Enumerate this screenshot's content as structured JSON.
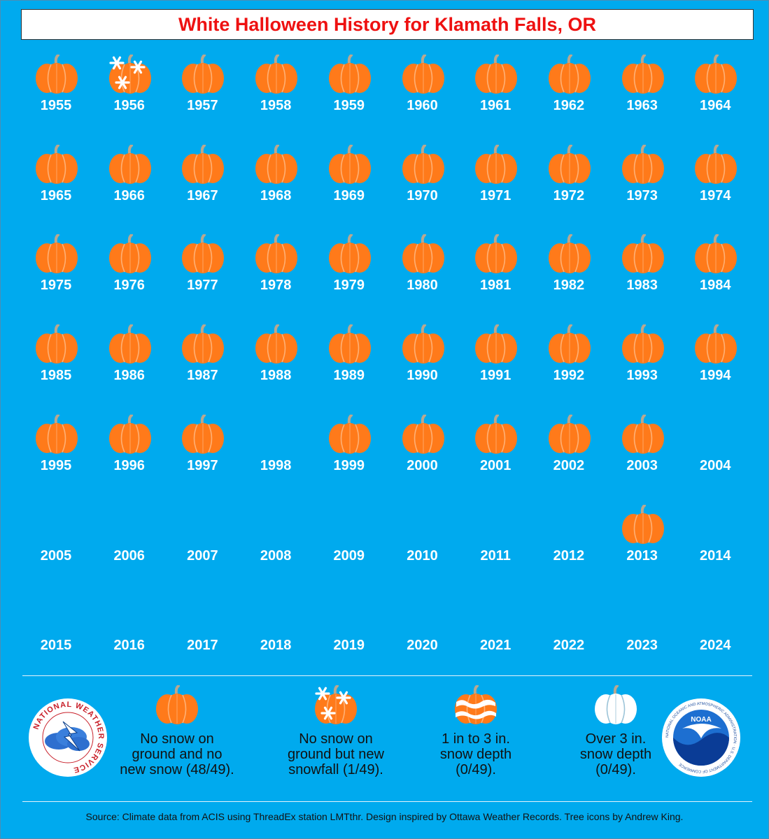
{
  "title": "White Halloween History for Klamath Falls, OR",
  "chart_data": {
    "type": "table",
    "title": "White Halloween History for Klamath Falls, OR",
    "years": [
      1955,
      1956,
      1957,
      1958,
      1959,
      1960,
      1961,
      1962,
      1963,
      1964,
      1965,
      1966,
      1967,
      1968,
      1969,
      1970,
      1971,
      1972,
      1973,
      1974,
      1975,
      1976,
      1977,
      1978,
      1979,
      1980,
      1981,
      1982,
      1983,
      1984,
      1985,
      1986,
      1987,
      1988,
      1989,
      1990,
      1991,
      1992,
      1993,
      1994,
      1995,
      1996,
      1997,
      1998,
      1999,
      2000,
      2001,
      2002,
      2003,
      2004,
      2005,
      2006,
      2007,
      2008,
      2009,
      2010,
      2011,
      2012,
      2013,
      2014,
      2015,
      2016,
      2017,
      2018,
      2019,
      2020,
      2021,
      2022,
      2023,
      2024
    ],
    "conditions": [
      "no_snow",
      "new_snow",
      "no_snow",
      "no_snow",
      "no_snow",
      "no_snow",
      "no_snow",
      "no_snow",
      "no_snow",
      "no_snow",
      "no_snow",
      "no_snow",
      "no_snow",
      "no_snow",
      "no_snow",
      "no_snow",
      "no_snow",
      "no_snow",
      "no_snow",
      "no_snow",
      "no_snow",
      "no_snow",
      "no_snow",
      "no_snow",
      "no_snow",
      "no_snow",
      "no_snow",
      "no_snow",
      "no_snow",
      "no_snow",
      "no_snow",
      "no_snow",
      "no_snow",
      "no_snow",
      "no_snow",
      "no_snow",
      "no_snow",
      "no_snow",
      "no_snow",
      "no_snow",
      "no_snow",
      "no_snow",
      "no_snow",
      null,
      "no_snow",
      "no_snow",
      "no_snow",
      "no_snow",
      "no_snow",
      null,
      null,
      null,
      null,
      null,
      null,
      null,
      null,
      null,
      "no_snow",
      null,
      null,
      null,
      null,
      null,
      null,
      null,
      null,
      null,
      null,
      null
    ],
    "columns": 10,
    "legend": [
      {
        "key": "no_snow",
        "label_lines": [
          "No snow on",
          "ground and no",
          "new snow (48/49)."
        ]
      },
      {
        "key": "new_snow",
        "label_lines": [
          "No snow on",
          "ground but new",
          "snowfall (1/49)."
        ]
      },
      {
        "key": "depth_1_3",
        "label_lines": [
          "1 in to 3 in.",
          "snow depth",
          "(0/49)."
        ]
      },
      {
        "key": "depth_over_3",
        "label_lines": [
          "Over 3 in.",
          "snow depth",
          "(0/49)."
        ]
      }
    ]
  },
  "source": "Source: Climate data from ACIS using ThreadEx station LMTthr. Design inspired by Ottawa Weather Records. Tree icons by Andrew King.",
  "logos": {
    "nws_text": "NATIONAL WEATHER SERVICE",
    "noaa_text": "NOAA",
    "noaa_ring_text": "NATIONAL OCEANIC AND ATMOSPHERIC ADMINISTRATION · U.S. DEPARTMENT OF COMMERCE"
  },
  "colors": {
    "background": "#00aaee",
    "title": "#ee1111",
    "pumpkin": "#ff7a1a",
    "pumpkin_rib": "#ffb074",
    "stem": "#b8a890",
    "white_pumpkin": "#ffffff"
  }
}
